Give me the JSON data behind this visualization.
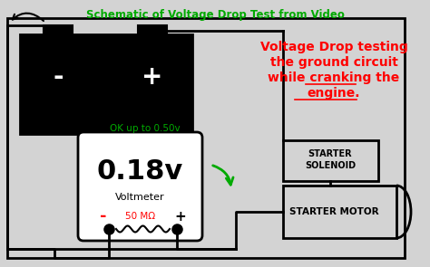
{
  "title": "Schematic of Voltage Drop Test from Video",
  "title_color": "#00aa00",
  "bg_color": "#d3d3d3",
  "voltmeter_reading": "0.18v",
  "voltmeter_label": "Voltmeter",
  "ok_label": "OK up to 0.50v",
  "fifty_mohm": "50 MΩ",
  "annotation_line1": "Voltage Drop testing",
  "annotation_line2": "the ground circuit",
  "annotation_line3": "while cranking the",
  "annotation_line4": "engine.",
  "solenoid_label1": "STARTER",
  "solenoid_label2": "SOLENOID",
  "motor_label": "STARTER MOTOR",
  "green_color": "#00aa00",
  "red_color": "#ff0000",
  "black_color": "#000000",
  "white_color": "#ffffff"
}
